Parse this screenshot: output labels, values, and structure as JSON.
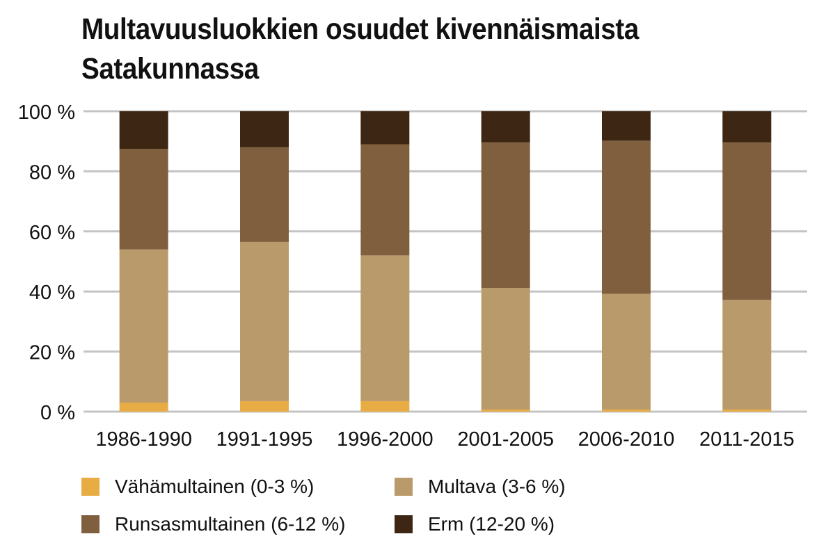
{
  "chart_data": {
    "type": "bar",
    "stacked": true,
    "title": "Multavuusluokkien osuudet kivennäismaista Satakunnassa",
    "xlabel": "",
    "ylabel": "",
    "ylim": [
      0,
      100
    ],
    "y_ticks": [
      "0 %",
      "20 %",
      "40 %",
      "60 %",
      "80 %",
      "100 %"
    ],
    "grid": true,
    "legend_position": "bottom",
    "categories": [
      "1986-1990",
      "1991-1995",
      "1996-2000",
      "2001-2005",
      "2006-2010",
      "2011-2015"
    ],
    "series": [
      {
        "name": "Vähämultainen (0-3 %)",
        "color": "#e8ac45",
        "values": [
          3,
          3.5,
          3.5,
          0.7,
          0.7,
          0.7
        ]
      },
      {
        "name": "Multava (3-6 %)",
        "color": "#b99a6b",
        "values": [
          51,
          53,
          48.5,
          40.5,
          38.5,
          36.5
        ]
      },
      {
        "name": "Runsasmultainen (6-12 %)",
        "color": "#7f5f3e",
        "values": [
          33.5,
          31.5,
          37,
          48.5,
          51,
          52.5
        ]
      },
      {
        "name": "Erm (12-20 %)",
        "color": "#3d2714",
        "values": [
          12.5,
          12,
          11,
          10.3,
          9.8,
          10.3
        ]
      }
    ]
  }
}
